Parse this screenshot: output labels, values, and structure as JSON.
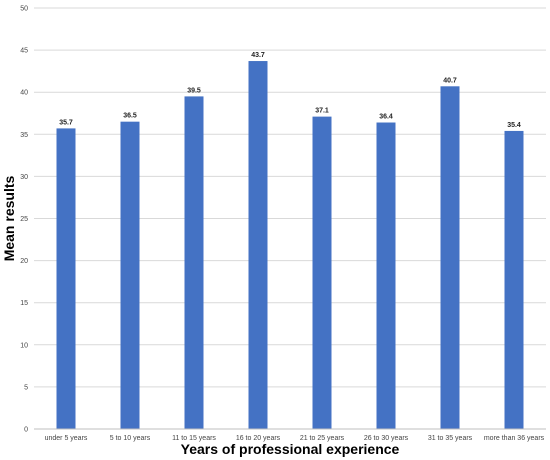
{
  "chart_data": {
    "type": "bar",
    "categories": [
      "under 5 years",
      "5 to 10 years",
      "11 to 15 years",
      "16 to 20 years",
      "21 to 25 years",
      "26 to 30 years",
      "31 to 35 years",
      "more than 36 years"
    ],
    "values": [
      35.7,
      36.5,
      39.5,
      43.7,
      37.1,
      36.4,
      40.7,
      35.4
    ],
    "data_labels": [
      "35.7",
      "36.5",
      "39.5",
      "43.7",
      "37.1",
      "36.4",
      "40.7",
      "35.4"
    ],
    "title": "",
    "xlabel": "Years of professional experience",
    "ylabel": "Mean results",
    "ylim": [
      0,
      50
    ],
    "yticks": [
      0,
      5,
      10,
      15,
      20,
      25,
      30,
      35,
      40,
      45,
      50
    ],
    "ytick_labels": [
      "0",
      "5",
      "10",
      "15",
      "20",
      "25",
      "30",
      "35",
      "40",
      "45",
      "50"
    ],
    "grid": true,
    "bar_color": "#4472c4"
  }
}
